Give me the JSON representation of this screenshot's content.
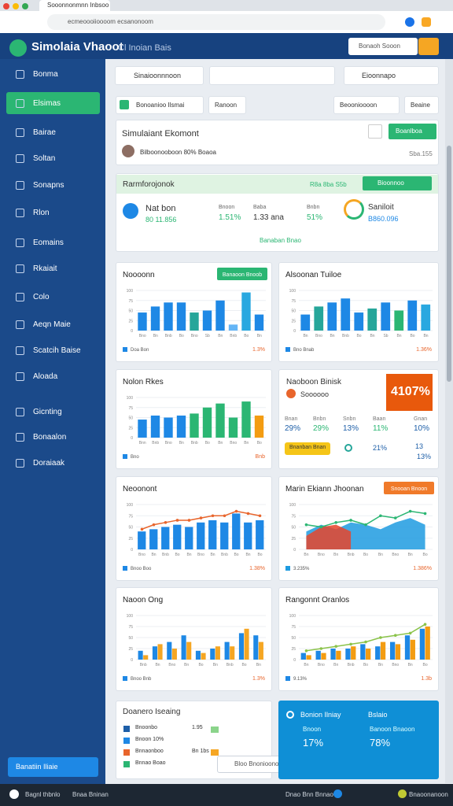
{
  "browser": {
    "tab": "Sooonnonmnn Inbsoo",
    "url": "ecmeoooiioooom ecsanonoom"
  },
  "header": {
    "title": "Simolaia Vhaoot",
    "subtitle": "Cl Inoian Bais",
    "search": "Bonaoh Sooon"
  },
  "sidebar": {
    "items": [
      "Bonma",
      "Elsimas",
      "Bairae",
      "Soltan",
      "Sonapns",
      "Rlon",
      "Eomains",
      "Rkaiait",
      "Colo",
      "Aeqn Maie",
      "Scatcih Baise",
      "Aloada",
      "Gicnting",
      "Bonaalon",
      "Doraiaak"
    ],
    "button": "Banatiin Iliaie"
  },
  "toolbar": {
    "search": "Sinaioonnnoon",
    "filter": "Eioonnapo",
    "chips": [
      "Bonoanioo Ilsmai",
      "Ranoon",
      "Beoonioooon",
      "Beaine"
    ]
  },
  "summary": {
    "title": "Simulaiant Ekomont",
    "line": "Bilboonooboon 80% Boaoa",
    "button": "Boanlboa",
    "note": "Sba.155"
  },
  "performance": {
    "title": "Rarmforojonok",
    "tag": "R8a 8ba S5b",
    "button": "Bioonnoo",
    "name": "Nat bon",
    "name_value": "80 11.856",
    "stats": [
      {
        "label": "Bnoon",
        "value": "1.51%"
      },
      {
        "label": "Baba",
        "value": "1.33 ana"
      },
      {
        "label": "Bnbn",
        "value": "51%"
      }
    ],
    "gauge_label": "Saniloit",
    "gauge_value": "B860.096",
    "link": "Banaban Bnao"
  },
  "kpi": {
    "title": "Naoboon Binisk",
    "subtitle": "Soooooo",
    "headline": "4107%",
    "stats": [
      {
        "label": "Bnan",
        "value": "29%"
      },
      {
        "label": "Bnbn",
        "value": "29%"
      },
      {
        "label": "Snbn",
        "value": "13%"
      },
      {
        "label": "Baan",
        "value": "11%"
      },
      {
        "label": "Gnan",
        "value": "10%"
      }
    ],
    "pill": "Bnanban Bnan",
    "extra": "21%",
    "extra2": "13",
    "extra3": "13%"
  },
  "list": {
    "title": "Doanero Iseaing",
    "rows": [
      {
        "label": "Bnoonbo",
        "value": "1.95"
      },
      {
        "label": "Bnoon 10%"
      },
      {
        "label": "Bnnaonboo",
        "value": "Bn 1bs"
      },
      {
        "label": "Bnnao Boao"
      }
    ]
  },
  "highlight": {
    "title": "Bonion Ilniay",
    "menu": "Bslaio",
    "left_label": "Bnoon",
    "left_value": "17%",
    "right_label": "Banoon Bnaoon",
    "right_value": "78%"
  },
  "search_pill": "Bloo Bnonioonooon",
  "footer": [
    "Bagnl thbnlo",
    "Bnaa Bninan",
    "Dnao Bnn Bnnao",
    "Bnaoonanoon"
  ],
  "chart_data": [
    {
      "type": "bar",
      "title": "Noooonn",
      "badge": "Banaoon Bnoob",
      "categories": [
        "Bno",
        "Bn",
        "Bnb",
        "Bo",
        "Bno",
        "Sb",
        "Bn",
        "Bnb",
        "Bo",
        "Bn"
      ],
      "ylim": [
        0,
        100
      ],
      "yticks": [
        0,
        25,
        50,
        75,
        100
      ],
      "series": [
        {
          "name": "Bnoon",
          "mark": "bar",
          "color": "#1e88e5",
          "colors": [
            "#1e88e5",
            "#1e88e5",
            "#1e88e5",
            "#1e88e5",
            "#26a69a",
            "#1e88e5",
            "#1e88e5",
            "#64b5f6",
            "#29a8e0",
            "#1e88e5"
          ],
          "values": [
            45,
            60,
            70,
            70,
            45,
            50,
            75,
            15,
            95,
            40
          ]
        }
      ],
      "footer": [
        "Doa Bon",
        "1.3%"
      ]
    },
    {
      "type": "bar",
      "title": "Alsoonan Tuiloe",
      "categories": [
        "Bn",
        "Bno",
        "Bn",
        "Bnb",
        "Bo",
        "Bn",
        "Sb",
        "Bn",
        "Bo",
        "Bn"
      ],
      "ylim": [
        0,
        100
      ],
      "yticks": [
        0,
        25,
        50,
        75,
        100
      ],
      "series": [
        {
          "name": "Bnbn",
          "mark": "bar",
          "color": "#1e88e5",
          "colors": [
            "#1e88e5",
            "#26a69a",
            "#1e88e5",
            "#1e88e5",
            "#1e88e5",
            "#26a69a",
            "#1e88e5",
            "#2bb673",
            "#1e88e5",
            "#29a8e0"
          ],
          "values": [
            40,
            60,
            70,
            80,
            45,
            55,
            70,
            50,
            75,
            65
          ]
        }
      ],
      "footer": [
        "Bno Bnab",
        "1.36%"
      ]
    },
    {
      "type": "bar",
      "title": "Nolon Rkes",
      "categories": [
        "Bnn",
        "Bnb",
        "Bno",
        "Bn",
        "Bnb",
        "Bo",
        "Bn",
        "Bno",
        "Bn",
        "Bo"
      ],
      "ylim": [
        0,
        100
      ],
      "yticks": [
        0,
        25,
        50,
        75,
        100
      ],
      "series": [
        {
          "name": "Bnaa",
          "mark": "bar",
          "color": "#1e88e5",
          "colors": [
            "#1e88e5",
            "#1e88e5",
            "#1e88e5",
            "#1e88e5",
            "#2bb673",
            "#2bb673",
            "#2bb673",
            "#2bb673",
            "#2bb673",
            "#f39c12"
          ],
          "values": [
            45,
            55,
            50,
            55,
            60,
            75,
            85,
            50,
            90,
            55
          ]
        }
      ],
      "footer": [
        "Bno",
        "Bnb"
      ]
    },
    {
      "type": "combo",
      "title": "Neoonont",
      "categories": [
        "Bno",
        "Bn",
        "Bnb",
        "Bo",
        "Bn",
        "Bno",
        "Bn",
        "Bnb",
        "Bo",
        "Bn",
        "Bo"
      ],
      "ylim": [
        0,
        100
      ],
      "yticks": [
        0,
        25,
        50,
        75,
        100
      ],
      "series": [
        {
          "name": "Bnoon",
          "mark": "bar",
          "color": "#1e88e5",
          "values": [
            40,
            45,
            50,
            55,
            50,
            60,
            65,
            60,
            80,
            60,
            65
          ]
        },
        {
          "name": "Bnbn",
          "mark": "line",
          "color": "#e8652c",
          "values": [
            45,
            55,
            60,
            65,
            65,
            70,
            75,
            75,
            85,
            80,
            75
          ]
        }
      ],
      "footer": [
        "Bnoo Boo",
        "1.38%"
      ]
    },
    {
      "type": "area",
      "title": "Marin Ekiann Jhoonan",
      "badge": "Snooan Bnoon",
      "categories": [
        "Bn",
        "Bno",
        "Bn",
        "Bnb",
        "Bo",
        "Bn",
        "Bno",
        "Bn",
        "Bo"
      ],
      "ylim": [
        0,
        100
      ],
      "yticks": [
        0,
        25,
        50,
        75,
        100
      ],
      "series": [
        {
          "name": "Bnoon",
          "mark": "area",
          "color": "#1e9be0",
          "values": [
            40,
            55,
            45,
            60,
            55,
            45,
            60,
            70,
            55
          ]
        },
        {
          "name": "Bnbn",
          "mark": "area",
          "color": "#e8452c",
          "values": [
            30,
            50,
            55,
            40,
            null,
            null,
            null,
            null,
            null
          ]
        },
        {
          "name": "Bnab",
          "mark": "line",
          "color": "#2bb673",
          "values": [
            55,
            50,
            60,
            65,
            55,
            75,
            70,
            85,
            80
          ]
        }
      ],
      "footer": [
        "3.235%",
        "1.386%"
      ]
    },
    {
      "type": "bar",
      "title": "Naoon Ong",
      "categories": [
        "Bnb",
        "Bn",
        "Bno",
        "Bn",
        "Bo",
        "Bn",
        "Bnb",
        "Bo",
        "Bn"
      ],
      "ylim": [
        0,
        100
      ],
      "yticks": [
        0,
        25,
        50,
        75,
        100
      ],
      "series": [
        {
          "name": "Bnoon",
          "mark": "bar",
          "color": "#1e88e5",
          "values": [
            20,
            30,
            40,
            55,
            20,
            25,
            40,
            60,
            55
          ]
        },
        {
          "name": "Bnbn",
          "mark": "bar",
          "color": "#f5a623",
          "values": [
            10,
            35,
            25,
            40,
            15,
            30,
            30,
            70,
            40
          ]
        }
      ],
      "footer": [
        "Bnoo Bnb",
        "1.3%"
      ]
    },
    {
      "type": "combo",
      "title": "Rangonnt Oranlos",
      "categories": [
        "Bn",
        "Bno",
        "Bn",
        "Bnb",
        "Bo",
        "Bn",
        "Bno",
        "Bn",
        "Bo"
      ],
      "ylim": [
        0,
        100
      ],
      "yticks": [
        0,
        25,
        50,
        75,
        100
      ],
      "series": [
        {
          "name": "Bnoon",
          "mark": "bar",
          "color": "#1e88e5",
          "values": [
            15,
            20,
            25,
            25,
            35,
            30,
            40,
            55,
            70
          ]
        },
        {
          "name": "Bnbn",
          "mark": "bar",
          "color": "#f39c12",
          "values": [
            10,
            15,
            20,
            30,
            25,
            40,
            35,
            45,
            75
          ]
        },
        {
          "name": "Bnab",
          "mark": "line",
          "color": "#8bc34a",
          "values": [
            20,
            25,
            30,
            35,
            40,
            50,
            55,
            60,
            80
          ]
        }
      ],
      "footer": [
        "9.13%",
        "1.3b"
      ]
    }
  ]
}
